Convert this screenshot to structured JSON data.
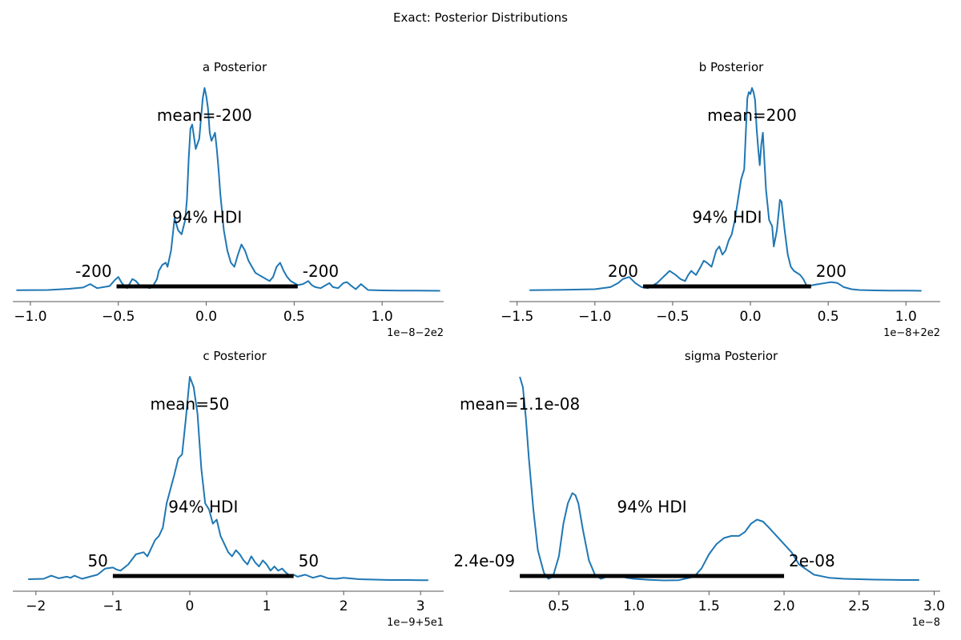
{
  "suptitle": "Exact: Posterior Distributions",
  "colors": {
    "line": "#1f77b4",
    "hdi": "#000000",
    "axis": "#555555"
  },
  "chart_data": [
    {
      "type": "line",
      "title": "a Posterior",
      "xlim": [
        -1.1,
        1.35
      ],
      "xticks": [
        -1.0,
        -0.5,
        0.0,
        0.5,
        1.0
      ],
      "xtick_labels": [
        "−1.0",
        "−0.5",
        "0.0",
        "0.5",
        "1.0"
      ],
      "offset_text": "1e−8−2e2",
      "mean_label": "mean=-200",
      "hdi_label": "94% HDI",
      "hdi": [
        -0.51,
        0.52
      ],
      "hdi_lower_label": "-200",
      "hdi_upper_label": "-200",
      "density": {
        "x": [
          -1.08,
          -0.9,
          -0.78,
          -0.7,
          -0.66,
          -0.62,
          -0.55,
          -0.52,
          -0.5,
          -0.48,
          -0.45,
          -0.44,
          -0.42,
          -0.4,
          -0.38,
          -0.35,
          -0.32,
          -0.3,
          -0.28,
          -0.27,
          -0.25,
          -0.23,
          -0.22,
          -0.2,
          -0.18,
          -0.16,
          -0.14,
          -0.12,
          -0.11,
          -0.1,
          -0.09,
          -0.08,
          -0.06,
          -0.04,
          -0.02,
          -0.01,
          0.0,
          0.01,
          0.02,
          0.03,
          0.04,
          0.05,
          0.06,
          0.07,
          0.08,
          0.1,
          0.12,
          0.14,
          0.16,
          0.18,
          0.2,
          0.22,
          0.24,
          0.26,
          0.28,
          0.3,
          0.32,
          0.34,
          0.36,
          0.38,
          0.4,
          0.42,
          0.44,
          0.46,
          0.48,
          0.5,
          0.52,
          0.55,
          0.58,
          0.6,
          0.62,
          0.65,
          0.68,
          0.7,
          0.72,
          0.75,
          0.78,
          0.8,
          0.82,
          0.85,
          0.88,
          0.92,
          1.0,
          1.1,
          1.2,
          1.33
        ],
        "y": [
          0.005,
          0.006,
          0.012,
          0.018,
          0.035,
          0.015,
          0.025,
          0.055,
          0.07,
          0.04,
          0.015,
          0.03,
          0.06,
          0.05,
          0.03,
          0.02,
          0.015,
          0.03,
          0.06,
          0.1,
          0.13,
          0.14,
          0.12,
          0.2,
          0.36,
          0.3,
          0.28,
          0.35,
          0.45,
          0.65,
          0.8,
          0.82,
          0.7,
          0.75,
          0.95,
          1.0,
          0.96,
          0.9,
          0.78,
          0.74,
          0.76,
          0.78,
          0.7,
          0.6,
          0.48,
          0.3,
          0.2,
          0.14,
          0.12,
          0.18,
          0.23,
          0.2,
          0.15,
          0.12,
          0.09,
          0.08,
          0.07,
          0.06,
          0.05,
          0.07,
          0.12,
          0.14,
          0.1,
          0.07,
          0.05,
          0.04,
          0.03,
          0.035,
          0.05,
          0.03,
          0.02,
          0.015,
          0.03,
          0.04,
          0.02,
          0.015,
          0.04,
          0.045,
          0.03,
          0.01,
          0.035,
          0.006,
          0.004,
          0.003,
          0.003,
          0.002
        ]
      }
    },
    {
      "type": "line",
      "title": "b Posterior",
      "xlim": [
        -1.55,
        1.22
      ],
      "xticks": [
        -1.5,
        -1.0,
        -0.5,
        0.0,
        0.5,
        1.0
      ],
      "xtick_labels": [
        "−1.5",
        "−1.0",
        "−0.5",
        "0.0",
        "0.5",
        "1.0"
      ],
      "offset_text": "1e−8+2e2",
      "mean_label": "mean=200",
      "hdi_label": "94% HDI",
      "hdi": [
        -0.69,
        0.39
      ],
      "hdi_lower_label": "200",
      "hdi_upper_label": "200",
      "density": {
        "x": [
          -1.42,
          -1.2,
          -1.0,
          -0.9,
          -0.85,
          -0.82,
          -0.78,
          -0.74,
          -0.7,
          -0.66,
          -0.6,
          -0.56,
          -0.52,
          -0.48,
          -0.45,
          -0.42,
          -0.4,
          -0.38,
          -0.35,
          -0.32,
          -0.3,
          -0.28,
          -0.25,
          -0.22,
          -0.2,
          -0.18,
          -0.16,
          -0.14,
          -0.12,
          -0.1,
          -0.08,
          -0.06,
          -0.04,
          -0.02,
          -0.01,
          0.0,
          0.01,
          0.02,
          0.03,
          0.04,
          0.05,
          0.06,
          0.07,
          0.08,
          0.1,
          0.12,
          0.14,
          0.15,
          0.17,
          0.19,
          0.2,
          0.22,
          0.24,
          0.26,
          0.28,
          0.3,
          0.32,
          0.34,
          0.36,
          0.38,
          0.4,
          0.44,
          0.48,
          0.52,
          0.56,
          0.6,
          0.65,
          0.7,
          0.8,
          0.9,
          1.0,
          1.1
        ],
        "y": [
          0.005,
          0.007,
          0.01,
          0.02,
          0.04,
          0.06,
          0.07,
          0.04,
          0.02,
          0.015,
          0.04,
          0.07,
          0.1,
          0.08,
          0.06,
          0.05,
          0.08,
          0.1,
          0.08,
          0.12,
          0.15,
          0.14,
          0.12,
          0.2,
          0.22,
          0.18,
          0.2,
          0.25,
          0.28,
          0.35,
          0.45,
          0.55,
          0.6,
          0.95,
          0.98,
          0.97,
          1.0,
          0.98,
          0.94,
          0.8,
          0.7,
          0.62,
          0.72,
          0.78,
          0.5,
          0.35,
          0.32,
          0.22,
          0.3,
          0.45,
          0.44,
          0.3,
          0.18,
          0.12,
          0.1,
          0.09,
          0.08,
          0.06,
          0.03,
          0.025,
          0.03,
          0.035,
          0.04,
          0.045,
          0.04,
          0.02,
          0.01,
          0.006,
          0.004,
          0.003,
          0.003,
          0.002
        ]
      }
    },
    {
      "type": "line",
      "title": "c Posterior",
      "xlim": [
        -2.3,
        3.3
      ],
      "xticks": [
        -2,
        -1,
        0,
        1,
        2,
        3
      ],
      "xtick_labels": [
        "−2",
        "−1",
        "0",
        "1",
        "2",
        "3"
      ],
      "offset_text": "1e−9+5e1",
      "mean_label": "mean=50",
      "hdi_label": "94% HDI",
      "hdi": [
        -1.0,
        1.35
      ],
      "hdi_lower_label": "50",
      "hdi_upper_label": "50",
      "density": {
        "x": [
          -2.1,
          -1.9,
          -1.8,
          -1.7,
          -1.6,
          -1.55,
          -1.5,
          -1.4,
          -1.3,
          -1.2,
          -1.1,
          -1.0,
          -0.95,
          -0.9,
          -0.8,
          -0.7,
          -0.6,
          -0.55,
          -0.5,
          -0.45,
          -0.4,
          -0.35,
          -0.3,
          -0.25,
          -0.2,
          -0.15,
          -0.1,
          -0.05,
          0.0,
          0.05,
          0.1,
          0.15,
          0.2,
          0.25,
          0.3,
          0.35,
          0.4,
          0.45,
          0.5,
          0.55,
          0.6,
          0.65,
          0.7,
          0.75,
          0.8,
          0.85,
          0.9,
          0.95,
          1.0,
          1.05,
          1.1,
          1.15,
          1.2,
          1.25,
          1.3,
          1.35,
          1.4,
          1.5,
          1.6,
          1.7,
          1.8,
          1.9,
          2.0,
          2.2,
          2.4,
          2.6,
          2.8,
          3.0,
          3.1
        ],
        "y": [
          0.008,
          0.01,
          0.025,
          0.012,
          0.02,
          0.015,
          0.025,
          0.01,
          0.02,
          0.03,
          0.06,
          0.065,
          0.055,
          0.05,
          0.08,
          0.13,
          0.14,
          0.12,
          0.16,
          0.2,
          0.22,
          0.26,
          0.38,
          0.45,
          0.52,
          0.6,
          0.62,
          0.8,
          1.0,
          0.95,
          0.82,
          0.55,
          0.38,
          0.35,
          0.28,
          0.3,
          0.22,
          0.18,
          0.14,
          0.12,
          0.15,
          0.13,
          0.1,
          0.08,
          0.12,
          0.09,
          0.07,
          0.1,
          0.08,
          0.05,
          0.07,
          0.05,
          0.06,
          0.04,
          0.025,
          0.03,
          0.02,
          0.03,
          0.015,
          0.025,
          0.012,
          0.01,
          0.015,
          0.008,
          0.006,
          0.004,
          0.004,
          0.003,
          0.003
        ]
      }
    },
    {
      "type": "line",
      "title": "sigma Posterior",
      "xlim": [
        0.17,
        3.04
      ],
      "xticks": [
        0.5,
        1.0,
        1.5,
        2.0,
        2.5,
        3.0
      ],
      "xtick_labels": [
        "0.5",
        "1.0",
        "1.5",
        "2.0",
        "2.5",
        "3.0"
      ],
      "offset_text": "1e−8",
      "mean_label": "mean=1.1e-08",
      "hdi_label": "94% HDI",
      "hdi": [
        0.24,
        2.0
      ],
      "hdi_lower_label": "2.4e-09",
      "hdi_upper_label": "2e-08",
      "density": {
        "x": [
          0.24,
          0.26,
          0.28,
          0.3,
          0.33,
          0.36,
          0.4,
          0.43,
          0.46,
          0.5,
          0.53,
          0.56,
          0.59,
          0.61,
          0.63,
          0.66,
          0.7,
          0.74,
          0.78,
          0.82,
          0.86,
          0.9,
          0.95,
          1.0,
          1.1,
          1.2,
          1.3,
          1.4,
          1.45,
          1.5,
          1.55,
          1.6,
          1.65,
          1.7,
          1.74,
          1.78,
          1.82,
          1.86,
          1.9,
          1.95,
          2.0,
          2.05,
          2.1,
          2.2,
          2.3,
          2.4,
          2.6,
          2.8,
          2.9
        ],
        "y": [
          1.0,
          0.95,
          0.8,
          0.6,
          0.35,
          0.15,
          0.04,
          0.01,
          0.02,
          0.12,
          0.28,
          0.38,
          0.43,
          0.42,
          0.38,
          0.25,
          0.1,
          0.03,
          0.01,
          0.02,
          0.025,
          0.025,
          0.015,
          0.01,
          0.005,
          0.002,
          0.003,
          0.02,
          0.06,
          0.13,
          0.18,
          0.21,
          0.22,
          0.22,
          0.24,
          0.28,
          0.3,
          0.29,
          0.26,
          0.22,
          0.18,
          0.14,
          0.08,
          0.03,
          0.015,
          0.01,
          0.006,
          0.004,
          0.004
        ]
      }
    }
  ]
}
